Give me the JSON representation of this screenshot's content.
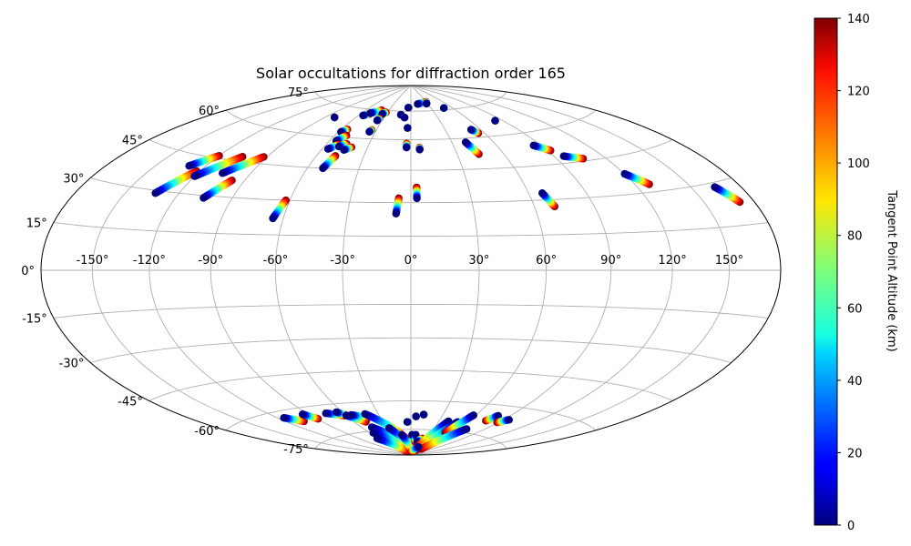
{
  "chart_data": {
    "type": "scatter",
    "projection": "hammer",
    "title": "Solar occultations for diffraction order 165",
    "x_tick_labels": [
      "-150°",
      "-120°",
      "-90°",
      "-60°",
      "-30°",
      "0°",
      "30°",
      "60°",
      "90°",
      "120°",
      "150°"
    ],
    "x_tick_values": [
      -150,
      -120,
      -90,
      -60,
      -30,
      0,
      30,
      60,
      90,
      120,
      150
    ],
    "y_tick_labels": [
      "-75°",
      "-60°",
      "-45°",
      "-30°",
      "-15°",
      "0°",
      "15°",
      "30°",
      "45°",
      "60°",
      "75°"
    ],
    "y_tick_values": [
      -75,
      -60,
      -45,
      -30,
      -15,
      0,
      15,
      30,
      45,
      60,
      75
    ],
    "grid": true,
    "colorbar": {
      "label": "Tangent Point Altitude (km)",
      "colormap": "jet",
      "range": [
        0,
        140
      ],
      "tick_labels": [
        "0",
        "20",
        "40",
        "60",
        "80",
        "100",
        "120",
        "140"
      ],
      "tick_values": [
        0,
        20,
        40,
        60,
        80,
        100,
        120,
        140
      ]
    },
    "tracks": [
      {
        "start": [
          -130,
          40.5
        ],
        "end": [
          -120,
          46
        ]
      },
      {
        "start": [
          -133,
          29
        ],
        "end": [
          -122,
          39
        ]
      },
      {
        "start": [
          -120,
          37
        ],
        "end": [
          -105,
          47
        ]
      },
      {
        "start": [
          -106,
          39.5
        ],
        "end": [
          -92,
          48
        ]
      },
      {
        "start": [
          -105,
          29
        ],
        "end": [
          -97,
          37
        ]
      },
      {
        "start": [
          -81,
          69
        ],
        "end": [
          -81,
          69
        ]
      },
      {
        "start": [
          -65,
          22
        ],
        "end": [
          -62,
          30
        ]
      },
      {
        "start": [
          -58,
          62.5
        ],
        "end": [
          -55,
          64
        ]
      },
      {
        "start": [
          -55,
          58
        ],
        "end": [
          -51,
          61
        ]
      },
      {
        "start": [
          -56,
          54
        ],
        "end": [
          -51,
          56.5
        ]
      },
      {
        "start": [
          -50,
          55.5
        ],
        "end": [
          -46,
          57
        ]
      },
      {
        "start": [
          -51,
          45
        ],
        "end": [
          -48,
          51
        ]
      },
      {
        "start": [
          -45,
          54
        ],
        "end": [
          -41,
          55.5
        ]
      },
      {
        "start": [
          -55,
          71.5
        ],
        "end": [
          -50,
          72.5
        ]
      },
      {
        "start": [
          -50,
          73
        ],
        "end": [
          -40,
          75
        ]
      },
      {
        "start": [
          -35,
          73
        ],
        "end": [
          -32,
          74
        ]
      },
      {
        "start": [
          -35,
          63.5
        ],
        "end": [
          -34,
          64.5
        ]
      },
      {
        "start": [
          -35,
          69.5
        ],
        "end": [
          -34,
          70.5
        ]
      },
      {
        "start": [
          -12,
          73
        ],
        "end": [
          -12,
          73
        ]
      },
      {
        "start": [
          -7,
          71.5
        ],
        "end": [
          -7,
          71.5
        ]
      },
      {
        "start": [
          -7,
          25
        ],
        "end": [
          -6,
          32
        ]
      },
      {
        "start": [
          -4,
          77
        ],
        "end": [
          -3,
          77
        ]
      },
      {
        "start": [
          -3,
          56
        ],
        "end": [
          -3,
          58
        ]
      },
      {
        "start": [
          -3,
          66
        ],
        "end": [
          -3,
          66
        ]
      },
      {
        "start": [
          3,
          32
        ],
        "end": [
          3,
          37
        ]
      },
      {
        "start": [
          6,
          55
        ],
        "end": [
          6,
          56
        ]
      },
      {
        "start": [
          12,
          79
        ],
        "end": [
          28,
          80
        ]
      },
      {
        "start": [
          28,
          79
        ],
        "end": [
          30,
          80
        ]
      },
      {
        "start": [
          48,
          76
        ],
        "end": [
          48,
          76
        ]
      },
      {
        "start": [
          40,
          58
        ],
        "end": [
          44,
          52
        ]
      },
      {
        "start": [
          52,
          64
        ],
        "end": [
          55,
          62
        ]
      },
      {
        "start": [
          67,
          33
        ],
        "end": [
          70,
          27
        ]
      },
      {
        "start": [
          83,
          67
        ],
        "end": [
          83,
          67
        ]
      },
      {
        "start": [
          85,
          54
        ],
        "end": [
          92,
          51
        ]
      },
      {
        "start": [
          96,
          48
        ],
        "end": [
          106,
          46
        ]
      },
      {
        "start": [
          120,
          38
        ],
        "end": [
          128,
          33
        ]
      },
      {
        "start": [
          164,
          28.5
        ],
        "end": [
          171,
          22.5
        ]
      },
      {
        "start": [
          -115,
          -63
        ],
        "end": [
          -105,
          -66
        ]
      },
      {
        "start": [
          -95,
          -63
        ],
        "end": [
          -89,
          -66
        ]
      },
      {
        "start": [
          -75,
          -64
        ],
        "end": [
          -62,
          -66
        ]
      },
      {
        "start": [
          -65,
          -64
        ],
        "end": [
          -60,
          -66
        ]
      },
      {
        "start": [
          -60,
          -66
        ],
        "end": [
          -48,
          -70
        ]
      },
      {
        "start": [
          -55,
          -66
        ],
        "end": [
          -42,
          -68
        ]
      },
      {
        "start": [
          -42,
          -66
        ],
        "end": [
          -10,
          -80
        ]
      },
      {
        "start": [
          -48,
          -73
        ],
        "end": [
          -15,
          -84
        ]
      },
      {
        "start": [
          -55,
          -76
        ],
        "end": [
          -20,
          -87
        ]
      },
      {
        "start": [
          -62,
          -79
        ],
        "end": [
          -35,
          -88
        ]
      },
      {
        "start": [
          -28,
          -74
        ],
        "end": [
          -5,
          -86
        ]
      },
      {
        "start": [
          -15,
          -78
        ],
        "end": [
          -3,
          -87
        ]
      },
      {
        "start": [
          -4,
          -71
        ],
        "end": [
          -3,
          -71
        ]
      },
      {
        "start": [
          5,
          -68
        ],
        "end": [
          5,
          -68
        ]
      },
      {
        "start": [
          12,
          -67
        ],
        "end": [
          12,
          -67
        ]
      },
      {
        "start": [
          2,
          -78
        ],
        "end": [
          6,
          -80
        ]
      },
      {
        "start": [
          8,
          -78
        ],
        "end": [
          10,
          -82
        ]
      },
      {
        "start": [
          15,
          -82
        ],
        "end": [
          22,
          -80
        ]
      },
      {
        "start": [
          40,
          -70
        ],
        "end": [
          25,
          -85
        ]
      },
      {
        "start": [
          50,
          -70
        ],
        "end": [
          35,
          -87
        ]
      },
      {
        "start": [
          58,
          -66
        ],
        "end": [
          50,
          -76
        ]
      },
      {
        "start": [
          70,
          -73
        ],
        "end": [
          50,
          -86
        ]
      },
      {
        "start": [
          80,
          -65
        ],
        "end": [
          76,
          -68
        ]
      },
      {
        "start": [
          95,
          -66
        ],
        "end": [
          89,
          -68
        ]
      },
      {
        "start": [
          28,
          -85
        ],
        "end": [
          5,
          -88
        ]
      }
    ]
  }
}
